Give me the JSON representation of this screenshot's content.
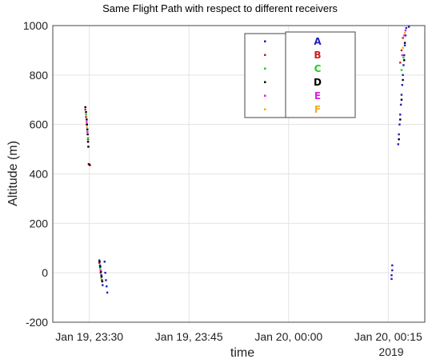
{
  "chart_data": {
    "type": "scatter",
    "title": "Same Flight Path with respect to different receivers",
    "xlabel": "time",
    "ylabel": "Altitude (m)",
    "x_tick_labels": [
      "Jan 19, 23:30",
      "Jan 19, 23:45",
      "Jan 20, 00:00",
      "Jan 20, 00:15"
    ],
    "x_tick_minutes": [
      30,
      45,
      60,
      75
    ],
    "x_secondary_label": "2019",
    "xlim_minutes": [
      24.5,
      80.5
    ],
    "x_unit_note": "x positions are minutes after Jan 19, 23:00",
    "ylim": [
      -200,
      1000
    ],
    "yticks": [
      -200,
      0,
      200,
      400,
      600,
      800,
      1000
    ],
    "grid": true,
    "legend_position": "top-center",
    "legend": [
      {
        "name": "A",
        "color": "#1f1fbf"
      },
      {
        "name": "B",
        "color": "#cc1f1f"
      },
      {
        "name": "C",
        "color": "#22cc22"
      },
      {
        "name": "D",
        "color": "#000000"
      },
      {
        "name": "E",
        "color": "#e020e0"
      },
      {
        "name": "F",
        "color": "#f0b020"
      }
    ],
    "series": [
      {
        "name": "A",
        "color": "#1f1fbf",
        "points": [
          [
            31.5,
            50
          ],
          [
            31.6,
            30
          ],
          [
            31.7,
            10
          ],
          [
            31.8,
            -10
          ],
          [
            31.9,
            -30
          ],
          [
            32.0,
            -50
          ],
          [
            32.3,
            45
          ],
          [
            32.4,
            0
          ],
          [
            32.5,
            -30
          ],
          [
            32.6,
            -55
          ],
          [
            32.7,
            -80
          ],
          [
            75.6,
            30
          ],
          [
            75.6,
            10
          ],
          [
            75.5,
            -10
          ],
          [
            75.5,
            -25
          ],
          [
            76.5,
            520
          ],
          [
            76.6,
            560
          ],
          [
            76.7,
            600
          ],
          [
            76.8,
            640
          ],
          [
            76.9,
            680
          ],
          [
            77.0,
            720
          ],
          [
            77.1,
            760
          ],
          [
            77.2,
            800
          ],
          [
            77.3,
            840
          ],
          [
            77.4,
            880
          ],
          [
            77.5,
            920
          ],
          [
            77.6,
            960
          ],
          [
            77.7,
            990
          ],
          [
            78.1,
            995
          ]
        ]
      },
      {
        "name": "B",
        "color": "#cc1f1f",
        "points": [
          [
            29.4,
            660
          ],
          [
            29.5,
            630
          ],
          [
            29.6,
            600
          ],
          [
            29.7,
            570
          ],
          [
            29.8,
            540
          ],
          [
            29.9,
            440
          ],
          [
            30.1,
            435
          ],
          [
            31.5,
            40
          ],
          [
            31.7,
            0
          ],
          [
            31.9,
            -30
          ],
          [
            76.8,
            850
          ],
          [
            77.0,
            900
          ],
          [
            77.2,
            950
          ]
        ]
      },
      {
        "name": "C",
        "color": "#22cc22",
        "points": [
          [
            29.5,
            640
          ],
          [
            29.7,
            580
          ],
          [
            29.8,
            545
          ],
          [
            31.6,
            20
          ],
          [
            31.8,
            -20
          ],
          [
            77.0,
            820
          ],
          [
            77.3,
            870
          ]
        ]
      },
      {
        "name": "D",
        "color": "#000000",
        "points": [
          [
            29.4,
            670
          ],
          [
            29.5,
            650
          ],
          [
            29.6,
            620
          ],
          [
            29.65,
            600
          ],
          [
            29.7,
            580
          ],
          [
            29.75,
            560
          ],
          [
            29.8,
            530
          ],
          [
            29.85,
            510
          ],
          [
            30.0,
            438
          ],
          [
            31.55,
            45
          ],
          [
            31.65,
            25
          ],
          [
            31.75,
            5
          ],
          [
            31.85,
            -15
          ],
          [
            31.95,
            -35
          ],
          [
            76.6,
            540
          ],
          [
            76.8,
            620
          ],
          [
            77.0,
            700
          ],
          [
            77.2,
            780
          ],
          [
            77.4,
            860
          ],
          [
            77.5,
            930
          ]
        ]
      },
      {
        "name": "E",
        "color": "#e020e0",
        "points": [
          [
            29.6,
            610
          ],
          [
            29.7,
            570
          ],
          [
            31.7,
            10
          ],
          [
            77.1,
            880
          ],
          [
            77.4,
            960
          ],
          [
            77.6,
            980
          ]
        ]
      },
      {
        "name": "F",
        "color": "#f0b020",
        "points": [
          [
            29.65,
            590
          ],
          [
            77.2,
            910
          ],
          [
            77.5,
            970
          ]
        ]
      }
    ]
  }
}
